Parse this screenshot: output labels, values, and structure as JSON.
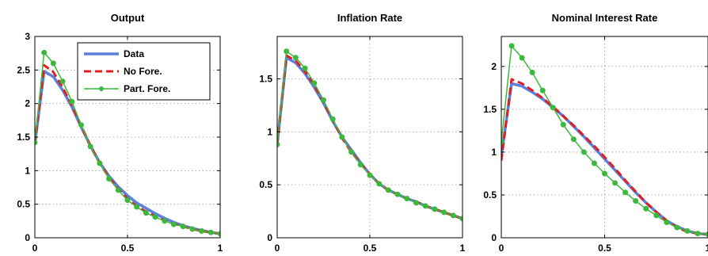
{
  "chart_data": [
    {
      "type": "line",
      "title": "Output",
      "xlabel": "",
      "ylabel": "",
      "xlim": [
        0,
        1
      ],
      "ylim": [
        0,
        3
      ],
      "xticks": [
        0,
        0.5,
        1
      ],
      "xtick_labels": [
        "0",
        "0.5",
        "1"
      ],
      "yticks": [
        0,
        0.5,
        1,
        1.5,
        2,
        2.5,
        3
      ],
      "ytick_labels": [
        "0",
        "0.5",
        "1",
        "1.5",
        "2",
        "2.5",
        "3"
      ],
      "grid": true,
      "legend": {
        "placement": "top-right",
        "entries": [
          "Data",
          "No Fore.",
          "Part. Fore."
        ]
      },
      "series": [
        {
          "name": "Data",
          "color": "#5b7fe0",
          "style": "solid",
          "x": [
            0,
            0.05,
            0.1,
            0.15,
            0.2,
            0.25,
            0.3,
            0.35,
            0.4,
            0.45,
            0.5,
            0.55,
            0.6,
            0.65,
            0.7,
            0.75,
            0.8,
            0.85,
            0.9,
            0.95,
            1
          ],
          "y": [
            1.4,
            2.48,
            2.4,
            2.2,
            1.95,
            1.65,
            1.37,
            1.12,
            0.92,
            0.76,
            0.63,
            0.52,
            0.44,
            0.36,
            0.29,
            0.23,
            0.18,
            0.14,
            0.11,
            0.08,
            0.06
          ]
        },
        {
          "name": "No Fore.",
          "color": "#e02020",
          "style": "dashed",
          "x": [
            0,
            0.05,
            0.1,
            0.15,
            0.2,
            0.25,
            0.3,
            0.35,
            0.4,
            0.45,
            0.5,
            0.55,
            0.6,
            0.65,
            0.7,
            0.75,
            0.8,
            0.85,
            0.9,
            0.95,
            1
          ],
          "y": [
            1.4,
            2.57,
            2.47,
            2.24,
            1.97,
            1.67,
            1.37,
            1.11,
            0.9,
            0.73,
            0.58,
            0.47,
            0.39,
            0.32,
            0.26,
            0.21,
            0.17,
            0.13,
            0.1,
            0.08,
            0.06
          ]
        },
        {
          "name": "Part. Fore.",
          "color": "#3cb83c",
          "style": "solid-markers",
          "x": [
            0,
            0.05,
            0.1,
            0.15,
            0.2,
            0.25,
            0.3,
            0.35,
            0.4,
            0.45,
            0.5,
            0.55,
            0.6,
            0.65,
            0.7,
            0.75,
            0.8,
            0.85,
            0.9,
            0.95,
            1
          ],
          "y": [
            1.42,
            2.76,
            2.6,
            2.33,
            2.03,
            1.68,
            1.36,
            1.11,
            0.88,
            0.71,
            0.56,
            0.46,
            0.37,
            0.31,
            0.25,
            0.2,
            0.17,
            0.13,
            0.1,
            0.08,
            0.06
          ]
        }
      ]
    },
    {
      "type": "line",
      "title": "Inflation Rate",
      "xlabel": "",
      "ylabel": "",
      "xlim": [
        0,
        1
      ],
      "ylim": [
        0,
        1.9
      ],
      "xticks": [
        0,
        0.5,
        1
      ],
      "xtick_labels": [
        "0",
        "0.5",
        "1"
      ],
      "yticks": [
        0,
        0.5,
        1,
        1.5
      ],
      "ytick_labels": [
        "0",
        "0.5",
        "1",
        "1.5"
      ],
      "grid": true,
      "series": [
        {
          "name": "Data",
          "color": "#5b7fe0",
          "style": "solid",
          "x": [
            0,
            0.05,
            0.1,
            0.15,
            0.2,
            0.25,
            0.3,
            0.35,
            0.4,
            0.45,
            0.5,
            0.55,
            0.6,
            0.65,
            0.7,
            0.75,
            0.8,
            0.85,
            0.9,
            0.95,
            1
          ],
          "y": [
            0.88,
            1.7,
            1.65,
            1.55,
            1.42,
            1.27,
            1.1,
            0.95,
            0.83,
            0.71,
            0.6,
            0.51,
            0.45,
            0.41,
            0.37,
            0.34,
            0.3,
            0.27,
            0.24,
            0.21,
            0.18
          ]
        },
        {
          "name": "No Fore.",
          "color": "#e02020",
          "style": "dashed",
          "x": [
            0,
            0.05,
            0.1,
            0.15,
            0.2,
            0.25,
            0.3,
            0.35,
            0.4,
            0.45,
            0.5,
            0.55,
            0.6,
            0.65,
            0.7,
            0.75,
            0.8,
            0.85,
            0.9,
            0.95,
            1
          ],
          "y": [
            0.88,
            1.72,
            1.67,
            1.57,
            1.44,
            1.28,
            1.11,
            0.94,
            0.81,
            0.7,
            0.6,
            0.51,
            0.45,
            0.41,
            0.37,
            0.34,
            0.3,
            0.27,
            0.24,
            0.21,
            0.18
          ]
        },
        {
          "name": "Part. Fore.",
          "color": "#3cb83c",
          "style": "solid-markers",
          "x": [
            0,
            0.05,
            0.1,
            0.15,
            0.2,
            0.25,
            0.3,
            0.35,
            0.4,
            0.45,
            0.5,
            0.55,
            0.6,
            0.65,
            0.7,
            0.75,
            0.8,
            0.85,
            0.9,
            0.95,
            1
          ],
          "y": [
            0.88,
            1.76,
            1.7,
            1.6,
            1.46,
            1.3,
            1.12,
            0.95,
            0.81,
            0.69,
            0.59,
            0.51,
            0.45,
            0.41,
            0.37,
            0.33,
            0.3,
            0.27,
            0.24,
            0.21,
            0.18
          ]
        }
      ]
    },
    {
      "type": "line",
      "title": "Nominal Interest Rate",
      "xlabel": "",
      "ylabel": "",
      "xlim": [
        0,
        1
      ],
      "ylim": [
        0,
        2.35
      ],
      "xticks": [
        0,
        0.5,
        1
      ],
      "xtick_labels": [
        "0",
        "0.5",
        "1"
      ],
      "yticks": [
        0,
        0.5,
        1,
        1.5,
        2
      ],
      "ytick_labels": [
        "0",
        "0.5",
        "1",
        "1.5",
        "2"
      ],
      "grid": true,
      "series": [
        {
          "name": "Data",
          "color": "#5b7fe0",
          "style": "solid",
          "x": [
            0,
            0.05,
            0.1,
            0.15,
            0.2,
            0.25,
            0.3,
            0.35,
            0.4,
            0.45,
            0.5,
            0.55,
            0.6,
            0.65,
            0.7,
            0.75,
            0.8,
            0.85,
            0.9,
            0.95,
            1
          ],
          "y": [
            0.95,
            1.8,
            1.77,
            1.7,
            1.62,
            1.52,
            1.42,
            1.3,
            1.18,
            1.05,
            0.92,
            0.79,
            0.66,
            0.53,
            0.41,
            0.3,
            0.2,
            0.13,
            0.08,
            0.05,
            0.04
          ]
        },
        {
          "name": "No Fore.",
          "color": "#e02020",
          "style": "dashed",
          "x": [
            0,
            0.05,
            0.1,
            0.15,
            0.2,
            0.25,
            0.3,
            0.35,
            0.4,
            0.45,
            0.5,
            0.55,
            0.6,
            0.65,
            0.7,
            0.75,
            0.8,
            0.85,
            0.9,
            0.95,
            1
          ],
          "y": [
            0.9,
            1.85,
            1.8,
            1.72,
            1.63,
            1.53,
            1.42,
            1.31,
            1.19,
            1.07,
            0.94,
            0.81,
            0.67,
            0.54,
            0.41,
            0.3,
            0.2,
            0.12,
            0.07,
            0.05,
            0.04
          ]
        },
        {
          "name": "Part. Fore.",
          "color": "#3cb83c",
          "style": "solid-markers",
          "x": [
            0,
            0.05,
            0.1,
            0.15,
            0.2,
            0.25,
            0.3,
            0.35,
            0.4,
            0.45,
            0.5,
            0.55,
            0.6,
            0.65,
            0.7,
            0.75,
            0.8,
            0.85,
            0.9,
            0.95,
            1
          ],
          "y": [
            1.12,
            2.24,
            2.1,
            1.93,
            1.72,
            1.52,
            1.32,
            1.15,
            1.0,
            0.87,
            0.75,
            0.64,
            0.53,
            0.43,
            0.34,
            0.26,
            0.18,
            0.12,
            0.08,
            0.05,
            0.04
          ]
        }
      ]
    }
  ]
}
